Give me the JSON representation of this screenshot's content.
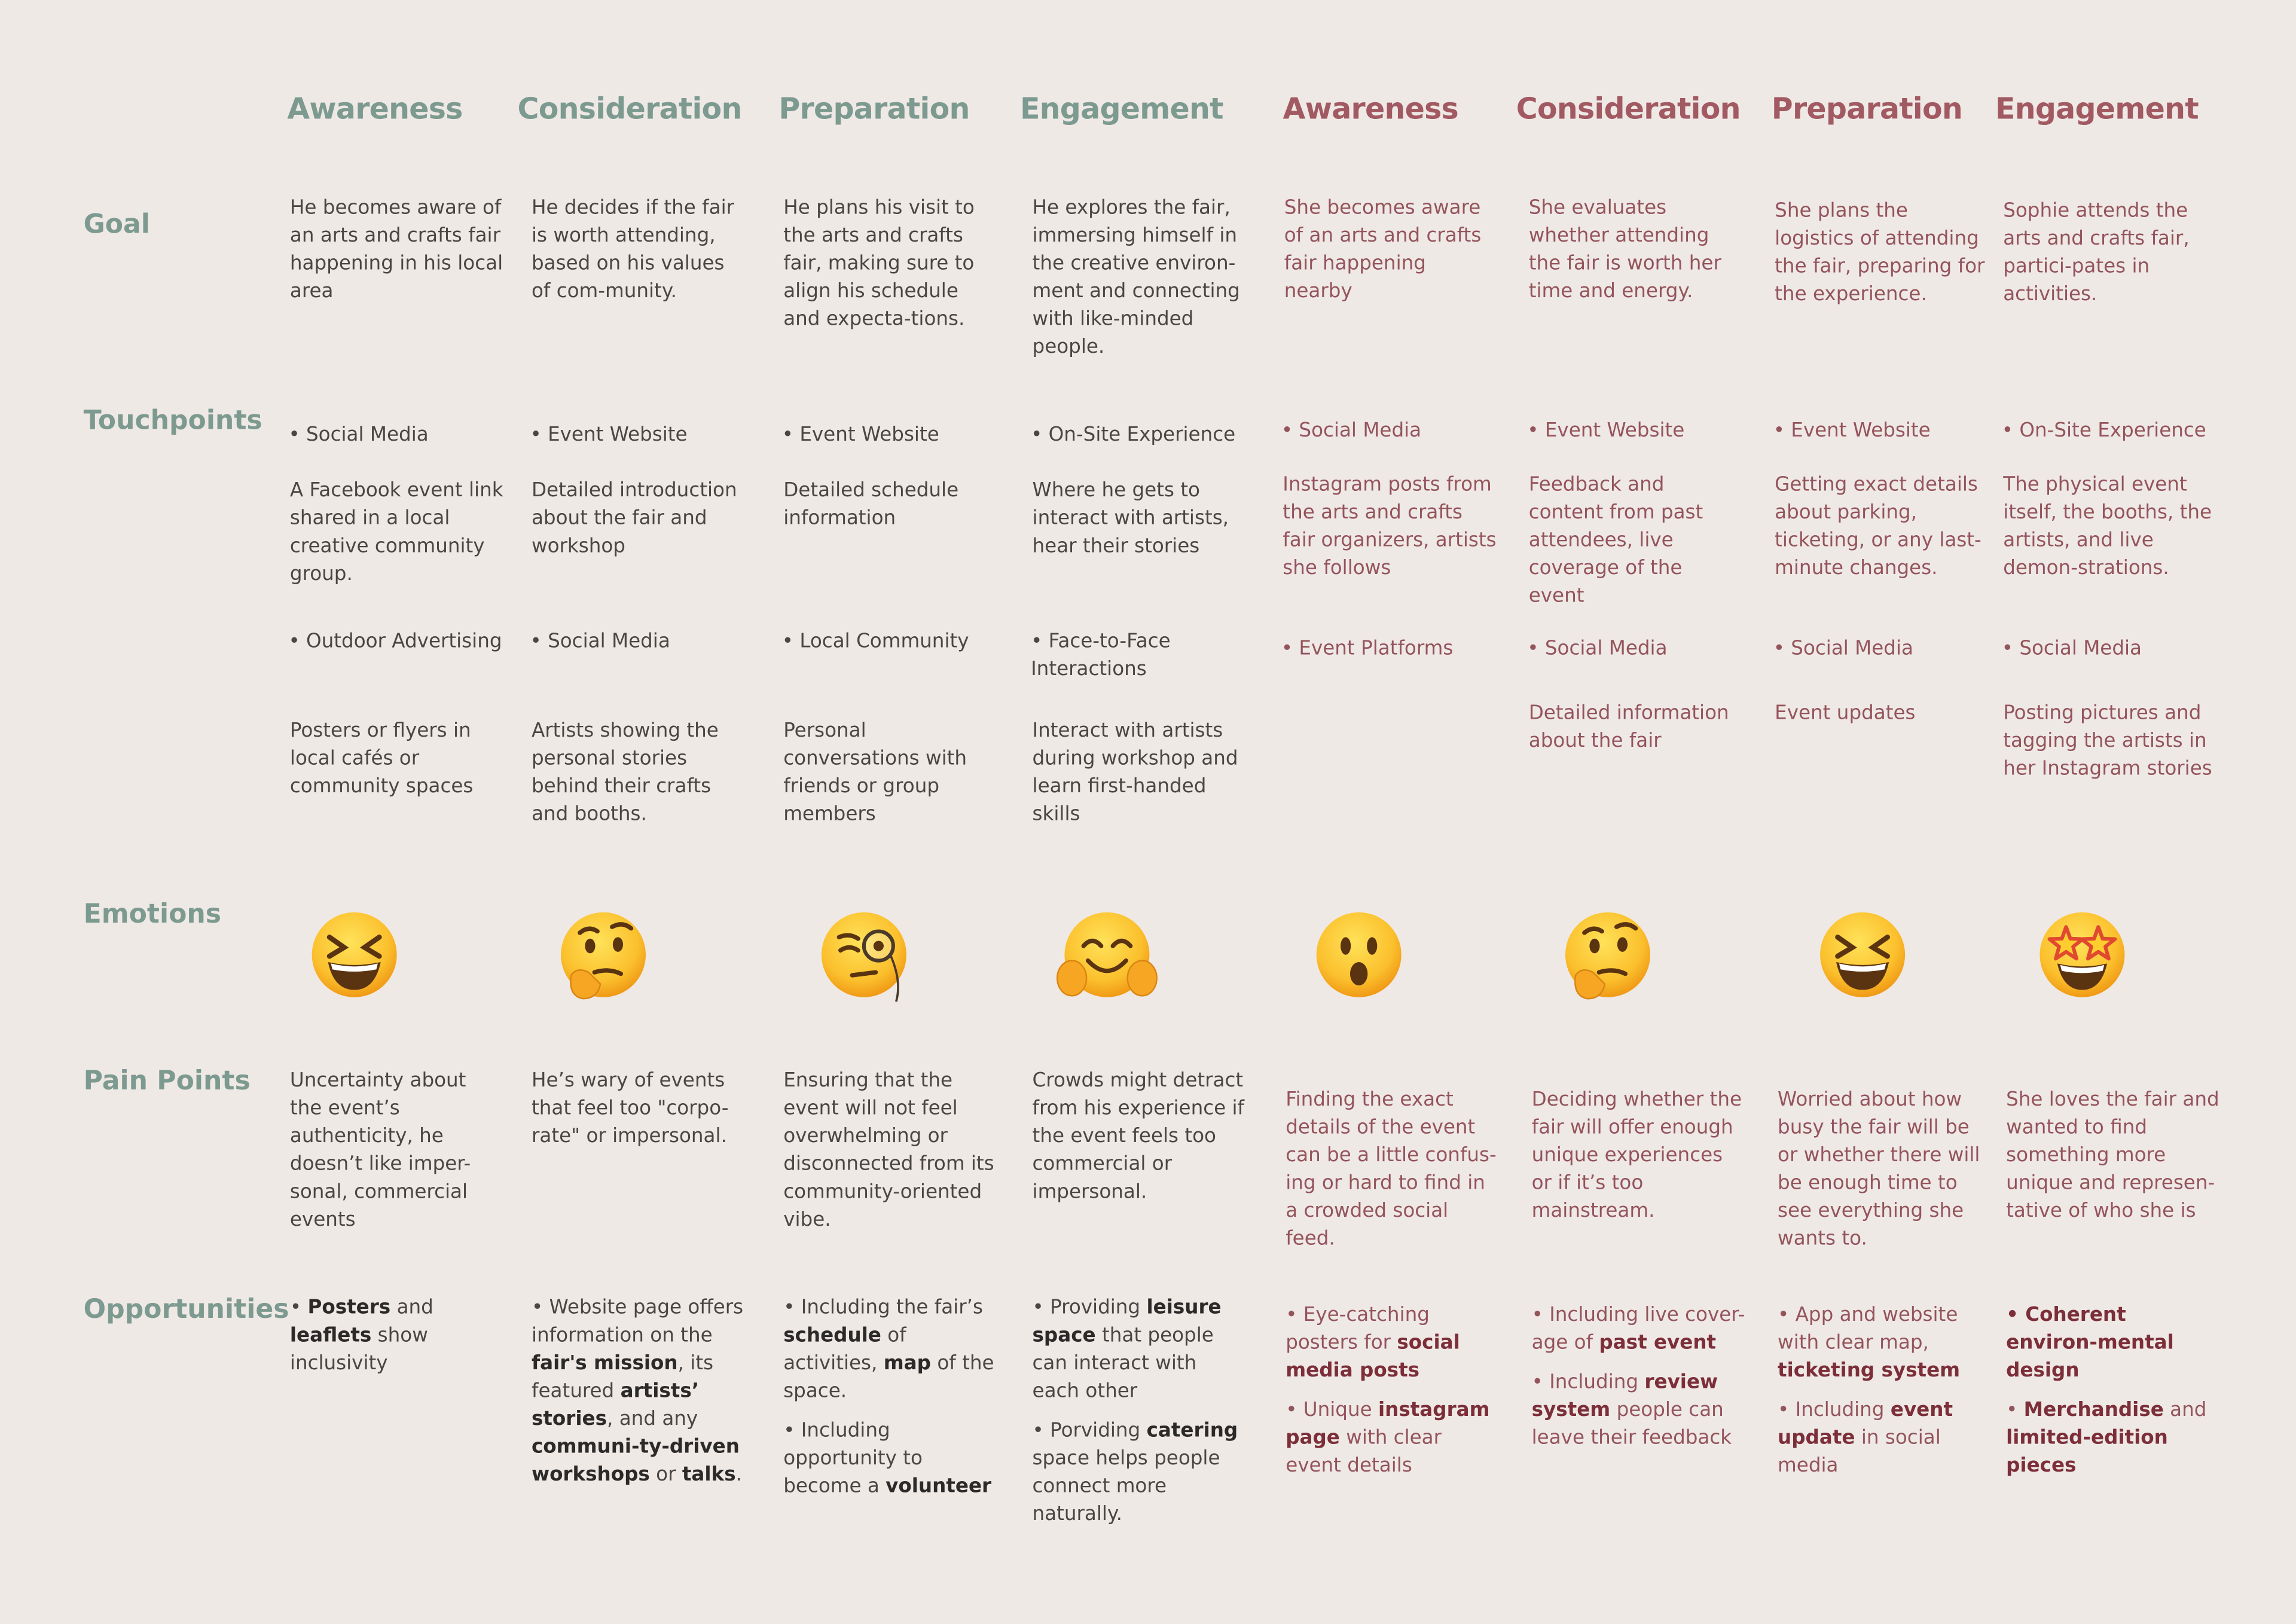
{
  "row_labels": {
    "goal": "Goal",
    "touchpoints": "Touchpoints",
    "emotions": "Emotions",
    "pain_points": "Pain Points",
    "opportunities": "Opportunities"
  },
  "columns": [
    {
      "stage": "Awareness",
      "goal": "He becomes aware of an arts and crafts fair happening in his local area",
      "touchpoints": [
        "• Social Media",
        "A Facebook event link shared in a local creative community group.",
        "• Outdoor Advertising",
        "Posters or flyers in local cafés or community spaces"
      ],
      "pain_point": "Uncertainty about the event’s authenticity, he doesn’t like imper-sonal, commercial events",
      "opportunities": [
        [
          "• ",
          {
            "bold": "Posters"
          },
          " and ",
          {
            "bold": "leaflets"
          },
          " show inclusivity"
        ]
      ]
    },
    {
      "stage": "Consideration",
      "goal": "He decides if the fair is worth attending, based on his values of com-munity.",
      "touchpoints": [
        "• Event Website",
        "Detailed introduction about the fair and workshop",
        "• Social Media",
        "Artists showing the personal stories behind their crafts and booths."
      ],
      "pain_point": "He’s wary of events that feel too \"corpo-rate\" or impersonal.",
      "opportunities": [
        [
          "• Website page offers information on the ",
          {
            "bold": "fair's mission"
          },
          ", its featured ",
          {
            "bold": "artists’ stories"
          },
          ", and any ",
          {
            "bold": "communi-ty-driven workshops"
          },
          " or ",
          {
            "bold": "talks"
          },
          "."
        ]
      ]
    },
    {
      "stage": "Preparation",
      "goal": "He plans his visit to the arts and crafts fair, making sure to align his schedule and expecta-tions.",
      "touchpoints": [
        "• Event Website",
        "Detailed schedule information",
        "• Local Community",
        "Personal conversations with friends or group members"
      ],
      "pain_point": "Ensuring that the event will not feel overwhelming or disconnected from its community-oriented vibe.",
      "opportunities": [
        [
          "• Including the fair’s ",
          {
            "bold": "schedule"
          },
          " of activities, ",
          {
            "bold": "map"
          },
          " of the space."
        ],
        [
          "• Including opportunity to become a ",
          {
            "bold": "volunteer"
          }
        ]
      ]
    },
    {
      "stage": "Engagement",
      "goal": "He explores the fair, immersing himself in the creative environ-ment and connecting with like-minded people.",
      "touchpoints": [
        "• On-Site Experience",
        "Where he gets to interact with artists, hear their stories",
        "• Face-to-Face Interactions",
        "Interact with artists during workshop and learn first-handed skills"
      ],
      "pain_point": "Crowds might detract from his experience if the event feels too commercial or impersonal.",
      "opportunities": [
        [
          "• Providing ",
          {
            "bold": "leisure space"
          },
          " that people can interact with each other"
        ],
        [
          "• Porviding ",
          {
            "bold": "catering"
          },
          " space helps people connect more naturally."
        ]
      ]
    },
    {
      "stage": "Awareness",
      "goal": "She becomes aware of an arts and crafts fair happening nearby",
      "touchpoints": [
        "• Social Media",
        "Instagram posts from the arts and crafts fair organizers, artists she follows",
        "• Event Platforms"
      ],
      "pain_point": "Finding the exact details of the event can be a little confus-ing or hard to find in a crowded social feed.",
      "opportunities": [
        [
          "• Eye-catching posters for ",
          {
            "bold": "social media posts"
          }
        ],
        [
          "• Unique ",
          {
            "bold": "instagram page"
          },
          " with clear event details"
        ]
      ]
    },
    {
      "stage": "Consideration",
      "goal": "She evaluates whether attending the fair is worth her time and energy.",
      "touchpoints": [
        "• Event Website",
        "Feedback and content from past attendees, live coverage of the event",
        "• Social Media",
        "Detailed information about the fair"
      ],
      "pain_point": "Deciding whether the fair will offer enough unique experiences or if it’s too mainstream.",
      "opportunities": [
        [
          "• Including live cover-age of ",
          {
            "bold": "past event"
          }
        ],
        [
          "• Including ",
          {
            "bold": "review system"
          },
          " people can leave their feedback"
        ]
      ]
    },
    {
      "stage": "Preparation",
      "goal": "She plans the logistics of attending the fair, preparing for the experience.",
      "touchpoints": [
        "• Event Website",
        "Getting exact details about parking, ticketing, or any last-minute changes.",
        "• Social Media",
        "Event updates"
      ],
      "pain_point": "Worried about how busy the fair will be or whether there will be enough time to see everything she wants to.",
      "opportunities": [
        [
          "• App and website with clear map, ",
          {
            "bold": "ticketing system"
          }
        ],
        [
          "• Including ",
          {
            "bold": "event update"
          },
          " in social media"
        ]
      ]
    },
    {
      "stage": "Engagement",
      "goal": "Sophie attends the arts and crafts fair, partici-pates in activities.",
      "touchpoints": [
        "• On-Site Experience",
        "The physical event itself, the booths, the artists, and live demon-strations.",
        "• Social Media",
        "Posting pictures and tagging the artists in her Instagram stories"
      ],
      "pain_point": "She loves the fair and wanted to find something more unique and represen-tative of who she is",
      "opportunities": [
        [
          {
            "bold": "• Coherent environ-mental design"
          }
        ],
        [
          "• ",
          {
            "bold": "Merchandise"
          },
          " and ",
          {
            "bold": "limited-edition pieces"
          }
        ]
      ]
    }
  ]
}
